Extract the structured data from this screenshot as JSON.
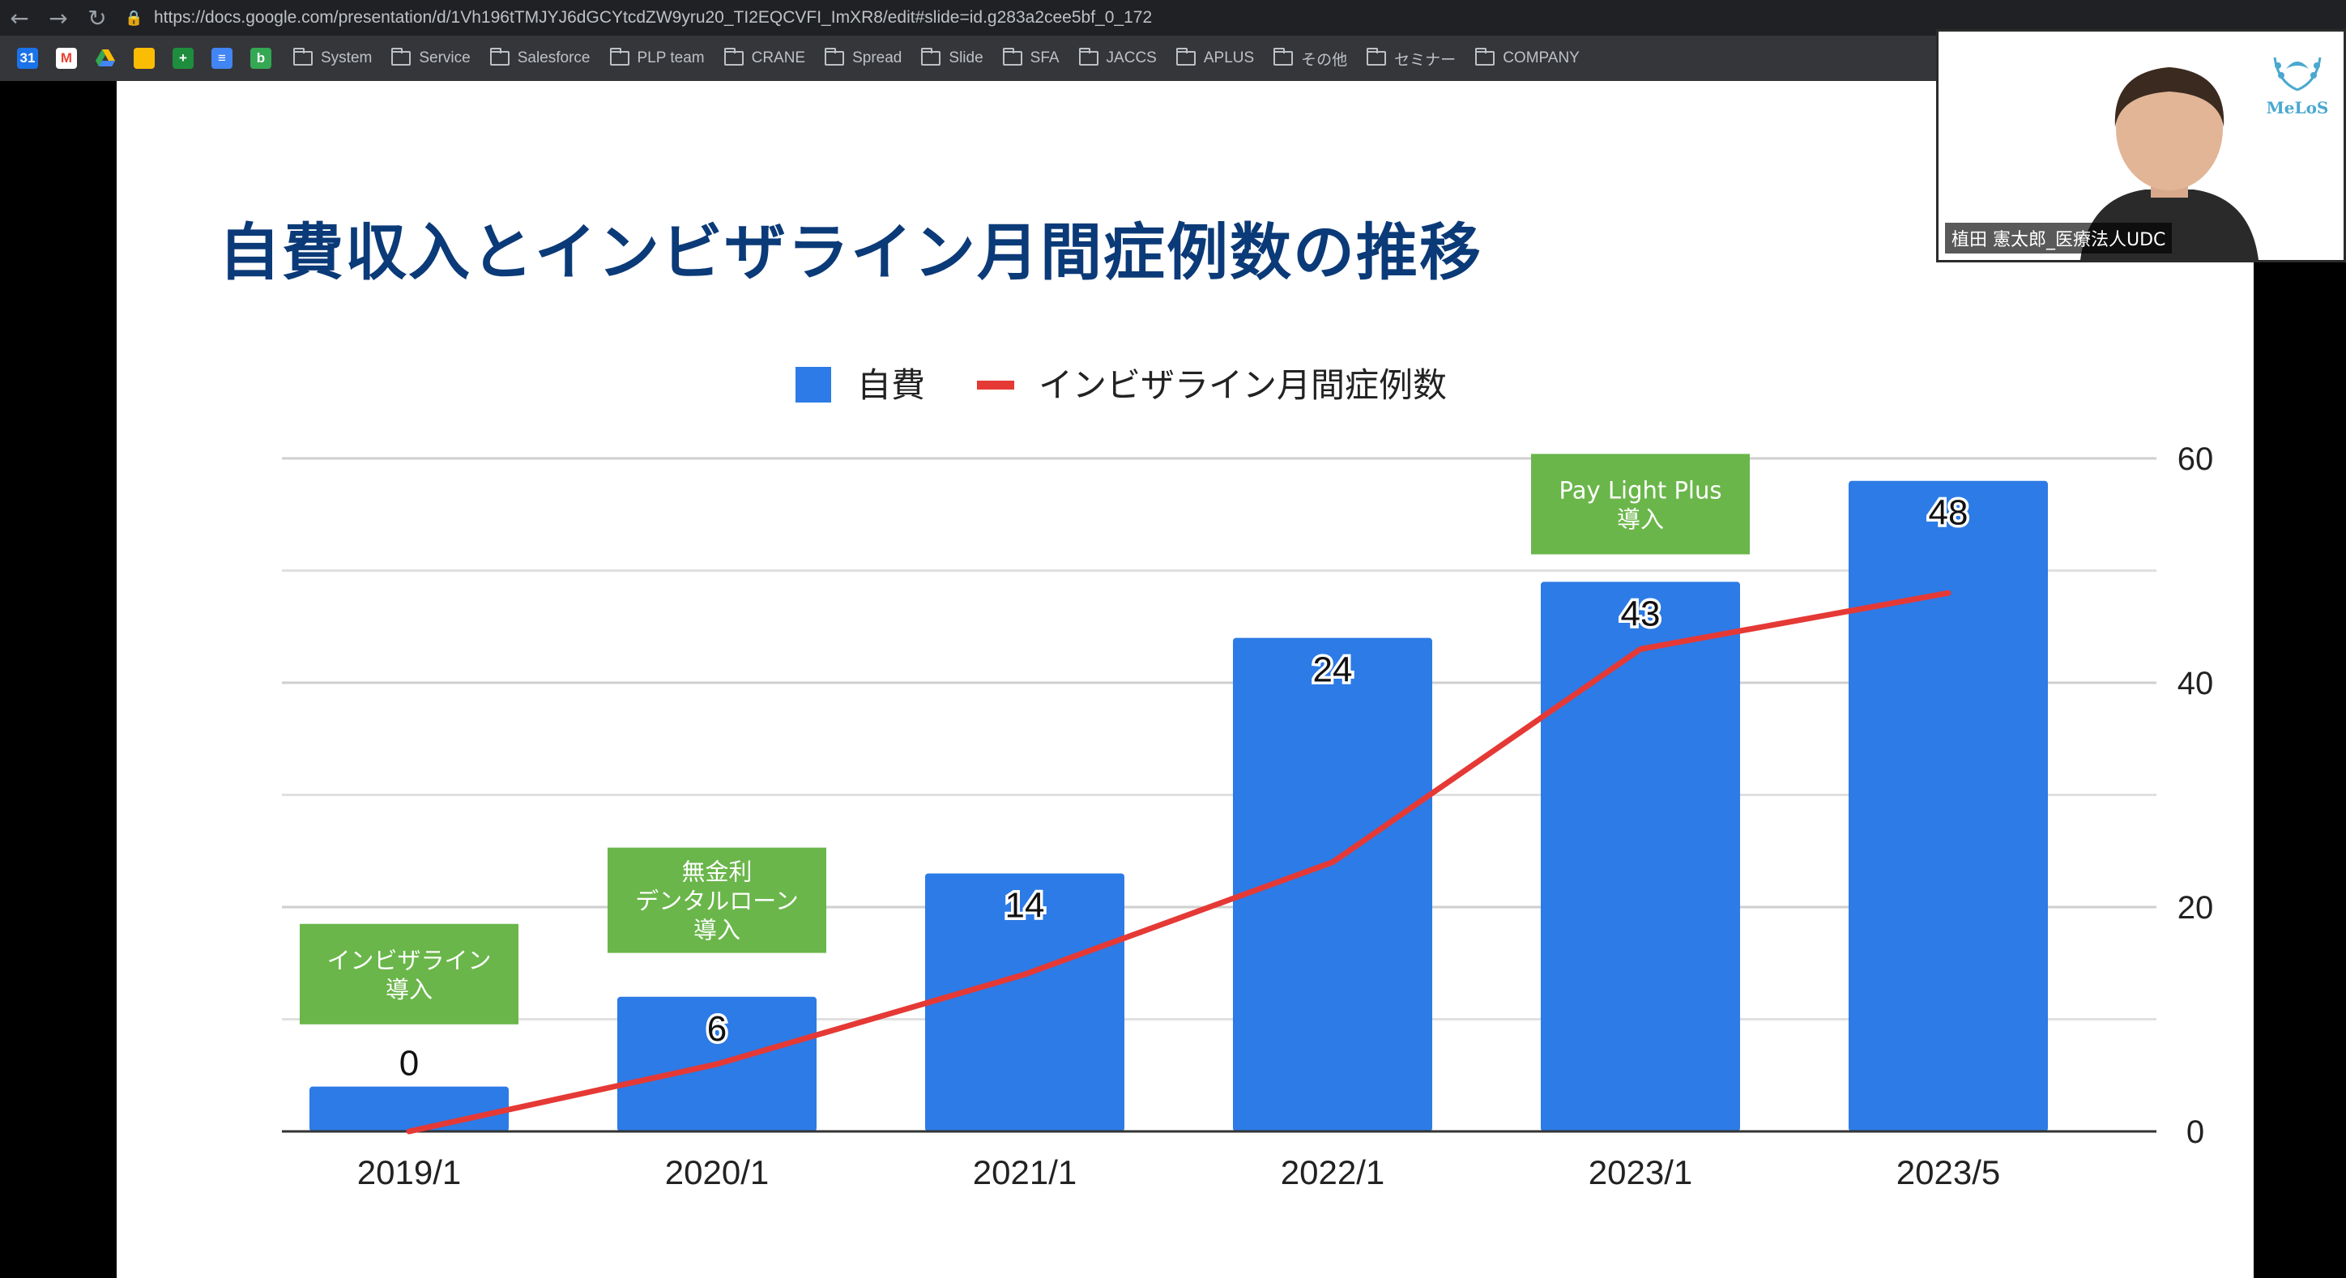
{
  "browser": {
    "url": "https://docs.google.com/presentation/d/1Vh196tTMJYJ6dGCYtcdZW9yru20_TI2EQCVFI_ImXR8/edit#slide=id.g283a2cee5bf_0_172",
    "bookmarks": [
      "System",
      "Service",
      "Salesforce",
      "PLP team",
      "CRANE",
      "Spread",
      "Slide",
      "SFA",
      "JACCS",
      "APLUS",
      "その他",
      "セミナー",
      "COMPANY"
    ],
    "app_icons": [
      "calendar-icon",
      "gmail-icon",
      "drive-icon",
      "keep-icon",
      "tasks-icon",
      "docs-icon",
      "b-app-icon"
    ]
  },
  "slide": {
    "title": "自費収入とインビザライン月間症例数の推移"
  },
  "chart_data": {
    "type": "bar",
    "categories": [
      "2019/1",
      "2020/1",
      "2021/1",
      "2022/1",
      "2023/1",
      "2023/5"
    ],
    "series": [
      {
        "name": "自費",
        "type": "bar",
        "color": "#2d7be6",
        "values": [
          0,
          6,
          14,
          24,
          43,
          48
        ],
        "bar_heights": [
          4,
          12,
          23,
          44,
          49,
          58
        ]
      },
      {
        "name": "インビザライン月間症例数",
        "type": "line",
        "color": "#e53935",
        "values": [
          0,
          6,
          14,
          24,
          43,
          48
        ]
      }
    ],
    "data_labels": [
      "0",
      "6",
      "14",
      "24",
      "43",
      "48"
    ],
    "y_axis": {
      "position": "right",
      "ticks": [
        0,
        20,
        40,
        60
      ],
      "min": 0,
      "max": 60
    },
    "legend_position": "top",
    "grid": true,
    "annotations": [
      {
        "text": [
          "インビザライン",
          "導入"
        ],
        "category": "2019/1",
        "y": 18.5
      },
      {
        "text": [
          "無金利",
          "デンタルローン",
          "導入"
        ],
        "category": "2020/1",
        "y": 25.3
      },
      {
        "text": [
          "Pay Light Plus",
          "導入"
        ],
        "category": "2023/1",
        "y": 60.4
      }
    ],
    "annotation_color": "#6ab64a"
  },
  "webcam": {
    "participant_name": "植田 憲太郎_医療法人UDC",
    "logo_text": "MeLoS"
  }
}
